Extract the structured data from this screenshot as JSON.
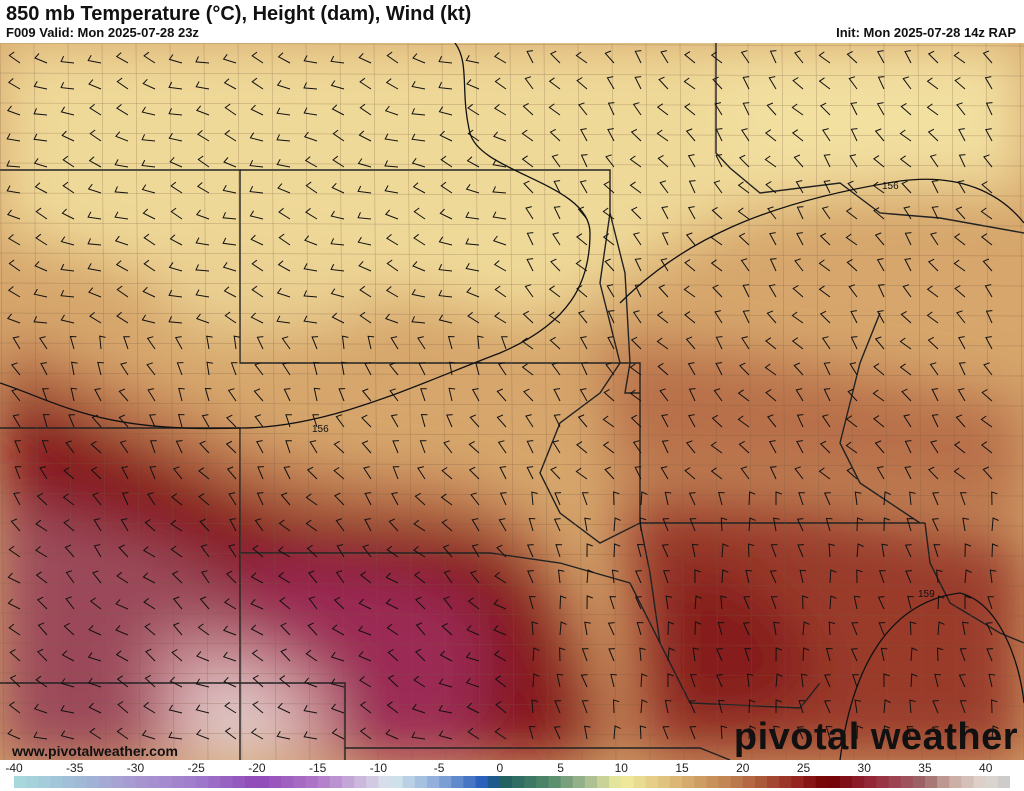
{
  "header": {
    "title": "850 mb Temperature (°C), Height (dam), Wind (kt)",
    "valid": "F009 Valid: Mon 2025-07-28 23z",
    "init": "Init: Mon 2025-07-28 14z RAP"
  },
  "map": {
    "contour_labels": [
      "156",
      "156",
      "159"
    ],
    "colors": {
      "cool_tan": "#efd998",
      "tan": "#d6a66c",
      "brown": "#b7714a",
      "dark_red": "#86191b",
      "magenta": "#9b2b55",
      "pink": "#c88a92",
      "light_pink": "#e0c8c8",
      "borders": "#222222"
    }
  },
  "footer": {
    "website": "www.pivotalweather.com",
    "logo_text": "pivotal weather"
  },
  "colorbar": {
    "ticks": [
      "-40",
      "-35",
      "-30",
      "-25",
      "-20",
      "-15",
      "-10",
      "-5",
      "0",
      "5",
      "10",
      "15",
      "20",
      "25",
      "30",
      "35",
      "40"
    ],
    "range": [
      -40,
      42
    ],
    "stops": [
      [
        -40,
        "#a8dcdc"
      ],
      [
        -35,
        "#a0bcd8"
      ],
      [
        -30,
        "#a898d0"
      ],
      [
        -25,
        "#a07ccc"
      ],
      [
        -20,
        "#9048b8"
      ],
      [
        -15,
        "#b078c8"
      ],
      [
        -11,
        "#d0c0e0"
      ],
      [
        -9,
        "#d8e8ec"
      ],
      [
        -5,
        "#88a8d8"
      ],
      [
        -1,
        "#2058b8"
      ],
      [
        0,
        "#1c5c60"
      ],
      [
        4,
        "#508868"
      ],
      [
        7,
        "#a0b890"
      ],
      [
        10,
        "#f2eea0"
      ],
      [
        15,
        "#d8b070"
      ],
      [
        20,
        "#b87248"
      ],
      [
        25,
        "#901c1c"
      ],
      [
        27,
        "#700000"
      ],
      [
        30,
        "#902030"
      ],
      [
        33,
        "#a04a58"
      ],
      [
        35,
        "#9a6868"
      ],
      [
        37,
        "#c8a8a0"
      ],
      [
        40,
        "#e0d8d0"
      ],
      [
        42,
        "#c8c8c8"
      ]
    ]
  }
}
